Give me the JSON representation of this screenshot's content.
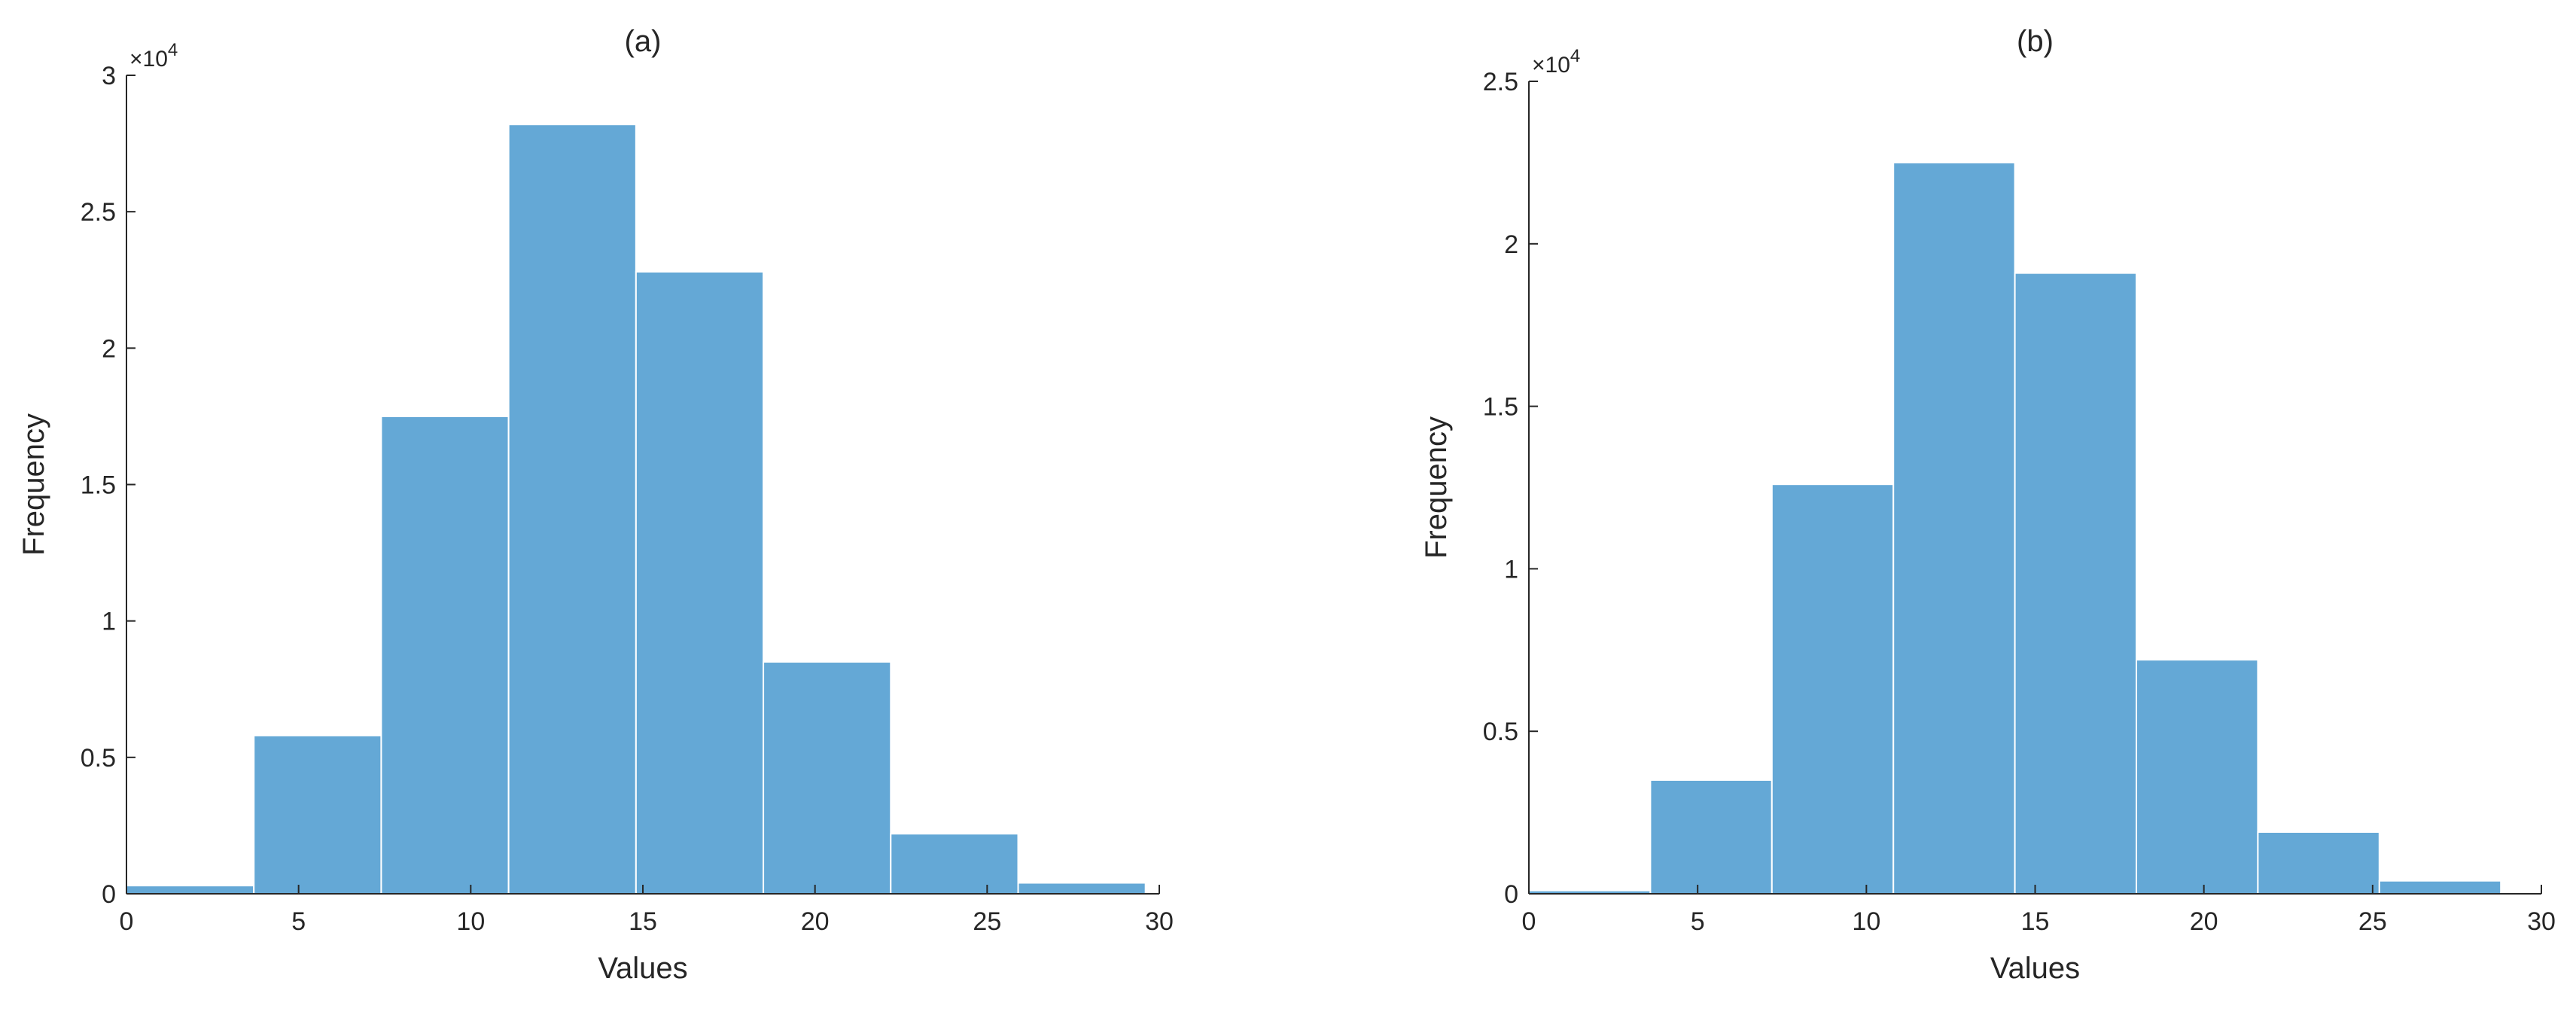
{
  "chart_data": [
    {
      "type": "bar",
      "title": "(a)",
      "xlabel": "Values",
      "ylabel": "Frequency",
      "y_multiplier_label": "×10",
      "y_multiplier_exponent": "4",
      "xlim": [
        0,
        30
      ],
      "ylim": [
        0,
        3
      ],
      "xticks": [
        "0",
        "5",
        "10",
        "15",
        "20",
        "25",
        "30"
      ],
      "yticks": [
        "0",
        "0.5",
        "1",
        "1.5",
        "2",
        "2.5",
        "3"
      ],
      "bin_edges": [
        0,
        3.7,
        7.4,
        11.1,
        14.8,
        18.5,
        22.2,
        25.9,
        29.6
      ],
      "values": [
        0.03,
        0.58,
        1.75,
        2.82,
        2.28,
        0.85,
        0.22,
        0.04
      ],
      "bar_color": "#64a8d6",
      "grid": false
    },
    {
      "type": "bar",
      "title": "(b)",
      "xlabel": "Values",
      "ylabel": "Frequency",
      "y_multiplier_label": "×10",
      "y_multiplier_exponent": "4",
      "xlim": [
        0,
        30
      ],
      "ylim": [
        0,
        2.5
      ],
      "xticks": [
        "0",
        "5",
        "10",
        "15",
        "20",
        "25",
        "30"
      ],
      "yticks": [
        "0",
        "0.5",
        "1",
        "1.5",
        "2",
        "2.5"
      ],
      "bin_edges": [
        0,
        3.6,
        7.2,
        10.8,
        14.4,
        18.0,
        21.6,
        25.2,
        28.8
      ],
      "values": [
        0.01,
        0.35,
        1.26,
        2.25,
        1.91,
        0.72,
        0.19,
        0.04
      ],
      "bar_color": "#64a8d6",
      "grid": false
    }
  ]
}
